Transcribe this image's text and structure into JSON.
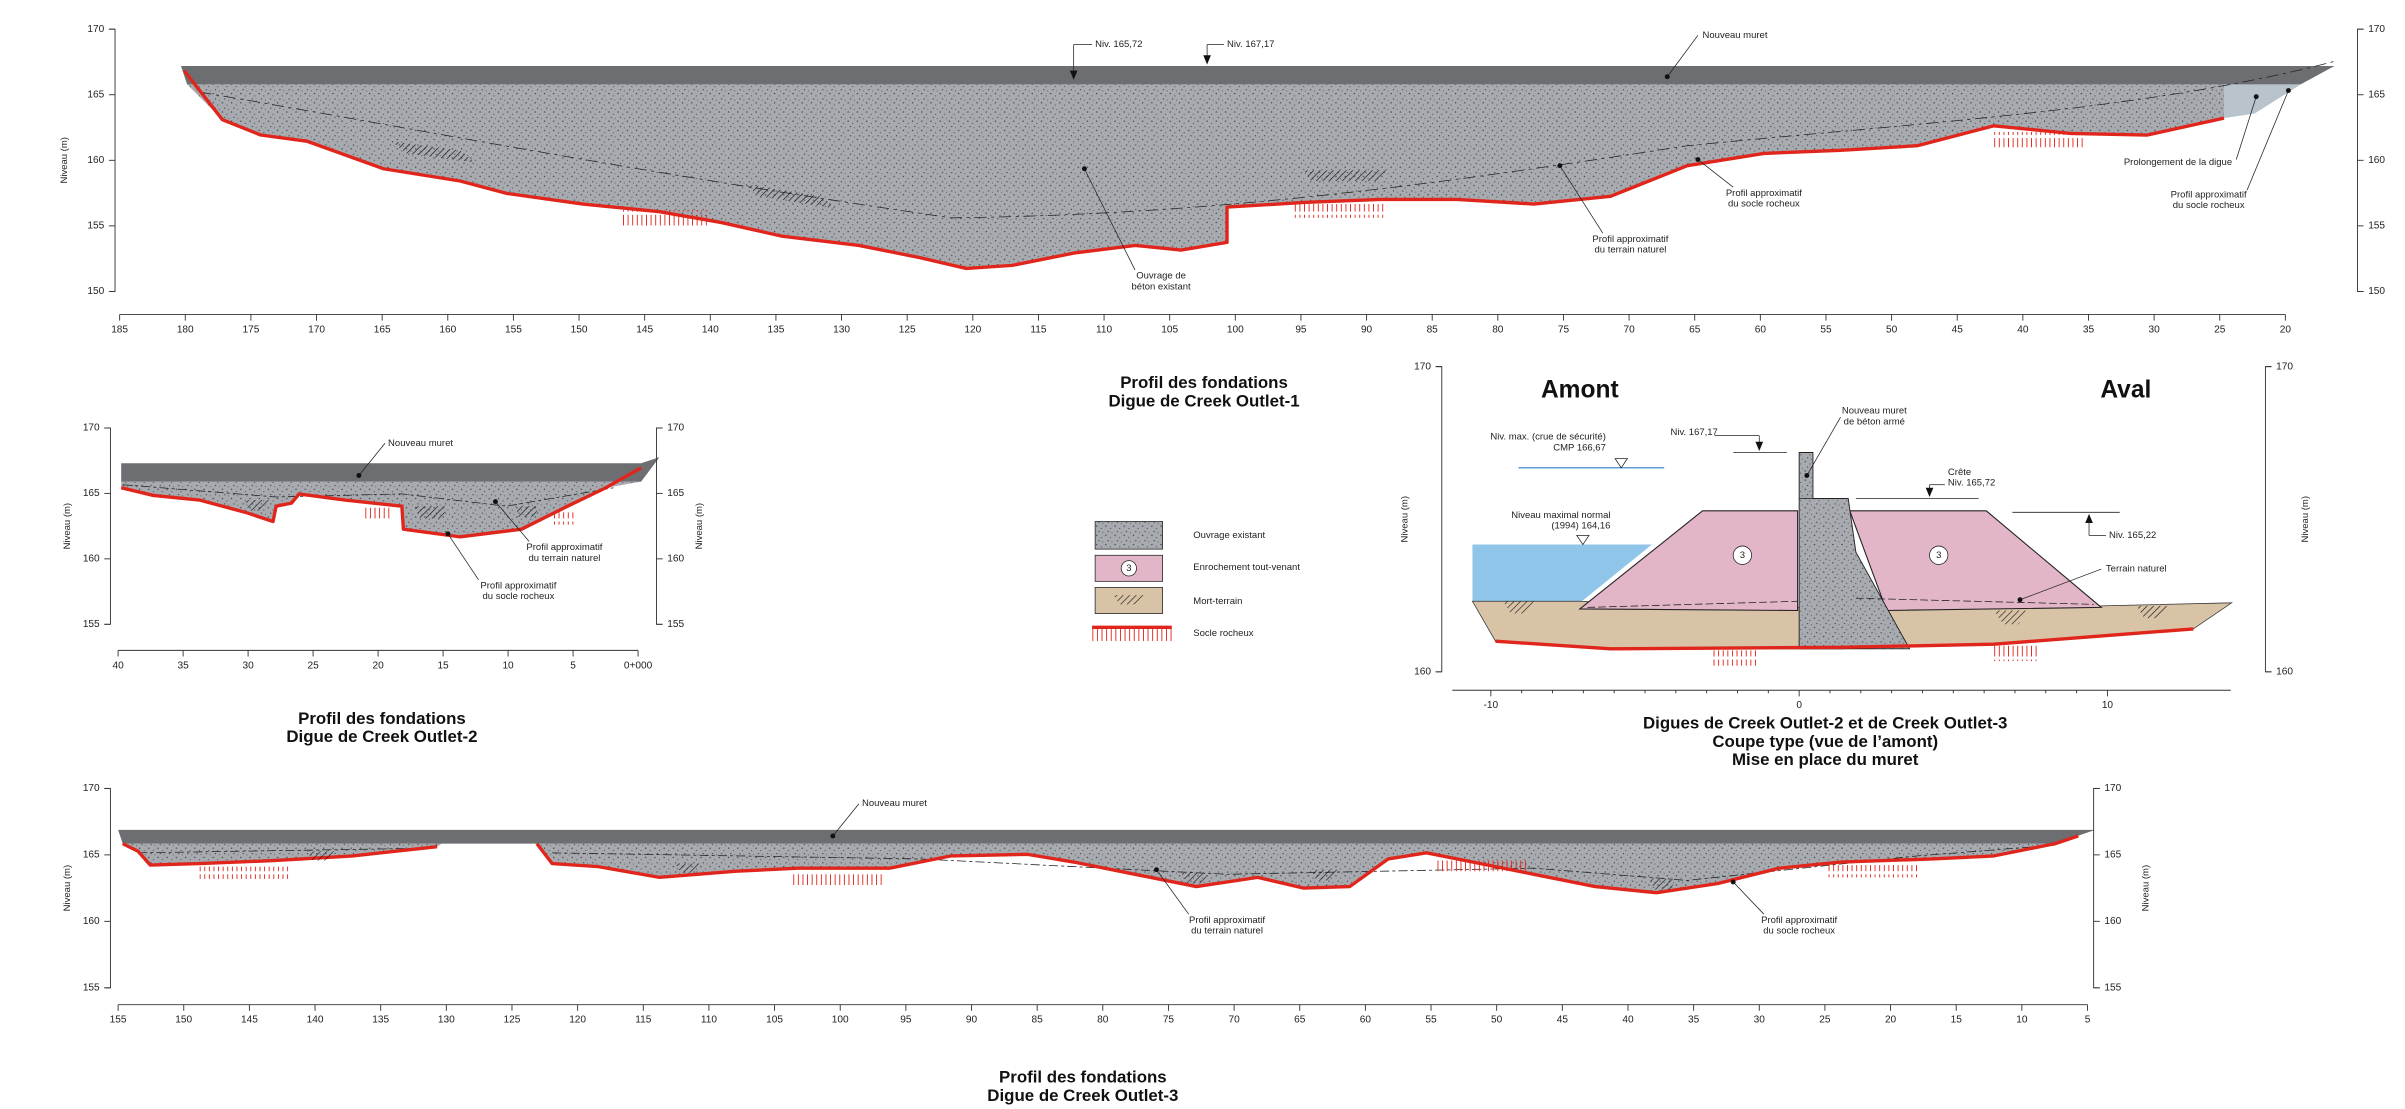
{
  "profile_1": {
    "title": [
      "Profil des fondations",
      "Digue de Creek Outlet-1"
    ],
    "axis_label": "Niveau (m)",
    "yticks": [
      "170",
      "165",
      "160",
      "155",
      "150"
    ],
    "xticks": [
      "185",
      "180",
      "175",
      "170",
      "165",
      "160",
      "155",
      "150",
      "145",
      "140",
      "135",
      "130",
      "125",
      "120",
      "115",
      "110",
      "105",
      "100",
      "95",
      "90",
      "85",
      "80",
      "75",
      "70",
      "65",
      "60",
      "55",
      "50",
      "45",
      "40",
      "35",
      "30",
      "25",
      "20"
    ],
    "annotations": [
      [
        "Niv. 165,72"
      ],
      [
        "Niv. 167,17"
      ],
      [
        "Nouveau muret"
      ],
      [
        "Ouvrage de",
        "béton existant"
      ],
      [
        "Profil approximatif",
        "du terrain naturel"
      ],
      [
        "Profil approximatif",
        "du socle rocheux"
      ],
      [
        "Prolongement de la digue"
      ],
      [
        "Profil approximatif",
        "du socle rocheux"
      ]
    ]
  },
  "profile_2": {
    "title": [
      "Profil des fondations",
      "Digue de Creek Outlet-2"
    ],
    "axis_label": "Niveau (m)",
    "yticks": [
      "170",
      "165",
      "160",
      "155"
    ],
    "xticks": [
      "40",
      "35",
      "30",
      "25",
      "20",
      "15",
      "10",
      "5",
      "0+000"
    ],
    "annotations": [
      [
        "Nouveau muret"
      ],
      [
        "Profil approximatif",
        "du terrain naturel"
      ],
      [
        "Profil approximatif",
        "du socle rocheux"
      ]
    ]
  },
  "profile_3": {
    "title": [
      "Profil des fondations",
      "Digue de Creek Outlet-3"
    ],
    "axis_label": "Niveau (m)",
    "yticks": [
      "170",
      "165",
      "160",
      "155"
    ],
    "xticks": [
      "155",
      "150",
      "145",
      "140",
      "135",
      "130",
      "125",
      "120",
      "115",
      "110",
      "105",
      "100",
      "95",
      "90",
      "85",
      "80",
      "75",
      "70",
      "65",
      "60",
      "55",
      "50",
      "45",
      "40",
      "35",
      "30",
      "25",
      "20",
      "15",
      "10",
      "5"
    ],
    "annotations": [
      [
        "Nouveau muret"
      ],
      [
        "Profil approximatif",
        "du terrain naturel"
      ],
      [
        "Profil approximatif",
        "du socle rocheux"
      ]
    ]
  },
  "section": {
    "title": [
      "Digues de Creek Outlet-2 et de Creek Outlet-3",
      "Coupe type (vue de l’amont)",
      "Mise en place du muret"
    ],
    "upstream": "Amont",
    "downstream": "Aval",
    "axis_label": "Niveau (m)",
    "yticks": [
      "170",
      "160"
    ],
    "xticks": [
      "-10",
      "0",
      "10"
    ],
    "zone_label": "3",
    "annotations": [
      [
        "Niv. max. (crue de sécurité)",
        "CMP 166,67"
      ],
      [
        "Niveau maximal normal",
        "(1994) 164,16"
      ],
      [
        "Niv. 167,17"
      ],
      [
        "Nouveau muret",
        "de béton armé"
      ],
      [
        "Crête",
        "Niv. 165,72"
      ],
      [
        "Niv. 165,22"
      ],
      [
        "Terrain naturel"
      ]
    ]
  },
  "legend": {
    "items": [
      {
        "label": "Ouvrage existant"
      },
      {
        "label": "Enrochement tout-venant",
        "symbol": "3"
      },
      {
        "label": "Mort-terrain"
      },
      {
        "label": "Socle rocheux"
      }
    ]
  }
}
